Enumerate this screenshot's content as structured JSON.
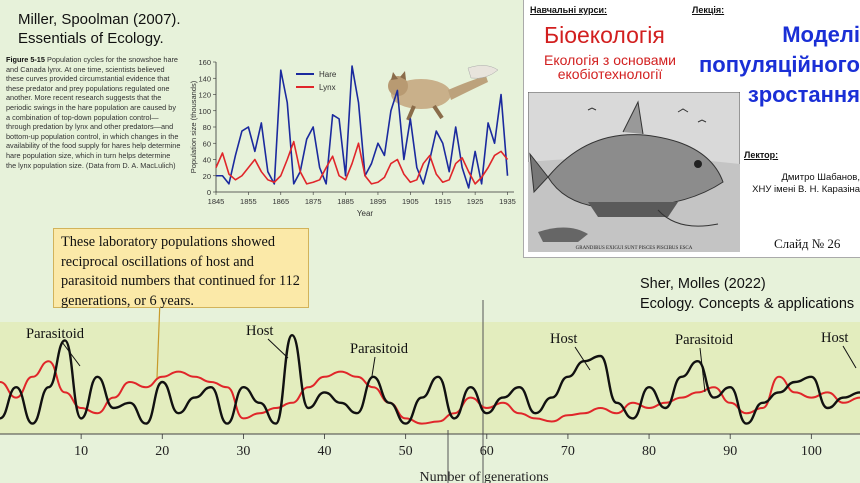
{
  "citation_top": {
    "line1": "Miller, Spoolman (2007).",
    "line2": "Essentials of Ecology."
  },
  "figure_caption": {
    "label": "Figure 5-15",
    "text": "Population cycles for the snowshoe hare and Canada lynx. At one time, scientists believed these curves provided circumstantial evidence that these predator and prey populations regulated one another. More recent research suggests that the periodic swings in the hare population are caused by a combination of top-down population control—through predation by lynx and other predators—and bottom-up population control, in which changes in the availability of the food supply for hares help determine hare population size, which in turn helps determine the lynx population size. (Data from D. A. MacLulich)"
  },
  "right_panel": {
    "courses_label": "Навчальні курси:",
    "lecture_label": "Лекція:",
    "course_title": "Біоекологія",
    "course_subtitle": "Екологія з основами екобіотехнології",
    "lecture_title_lines": [
      "Моделі",
      "популяційного",
      "зростання"
    ],
    "lector_label": "Лектор:",
    "lector_name": "Дмитро Шабанов,",
    "lector_affiliation": "ХНУ імені В. Н. Каразіна",
    "slide_number": "Слайд № 26",
    "engraving_caption": "GRANDIBUS EXIGUI SUNT PISCES PISCIBUS ESCA"
  },
  "callout": {
    "text": "These laboratory populations showed reciprocal oscillations of host and parasitoid numbers that continued for 112 generations, or 6 years."
  },
  "citation_bottom": {
    "line1": "Sher, Molles (2022)",
    "line2": "Ecology. Concepts & applications"
  },
  "colors": {
    "hare": "#1b2a9e",
    "lynx": "#e0262a",
    "host": "#111111",
    "parasitoid": "#e0262a",
    "course": "#d21f1f",
    "lecture": "#1a2fd6"
  },
  "chart_data": [
    {
      "type": "line",
      "x": [
        1845,
        1847,
        1849,
        1851,
        1853,
        1855,
        1857,
        1859,
        1861,
        1863,
        1865,
        1867,
        1869,
        1871,
        1873,
        1875,
        1877,
        1879,
        1881,
        1883,
        1885,
        1887,
        1889,
        1891,
        1893,
        1895,
        1897,
        1899,
        1901,
        1903,
        1905,
        1907,
        1909,
        1911,
        1913,
        1915,
        1917,
        1919,
        1921,
        1923,
        1925,
        1927,
        1929,
        1931,
        1933,
        1935
      ],
      "series": [
        {
          "name": "Hare",
          "values": [
            20,
            20,
            10,
            45,
            75,
            80,
            50,
            85,
            25,
            10,
            150,
            110,
            10,
            25,
            65,
            80,
            30,
            10,
            95,
            90,
            20,
            155,
            110,
            20,
            35,
            60,
            45,
            100,
            125,
            40,
            90,
            30,
            10,
            40,
            75,
            60,
            25,
            80,
            30,
            5,
            50,
            10,
            85,
            60,
            120,
            20
          ]
        },
        {
          "name": "Lynx",
          "values": [
            30,
            48,
            22,
            15,
            20,
            30,
            40,
            25,
            15,
            12,
            20,
            40,
            62,
            25,
            10,
            12,
            15,
            30,
            44,
            20,
            15,
            35,
            60,
            20,
            10,
            12,
            18,
            35,
            40,
            22,
            12,
            15,
            35,
            45,
            22,
            12,
            15,
            35,
            42,
            25,
            10,
            18,
            30,
            45,
            50,
            40
          ]
        }
      ],
      "xlabel": "Year",
      "ylabel": "Population size (thousands)",
      "xticks": [
        1845,
        1855,
        1865,
        1875,
        1885,
        1895,
        1905,
        1915,
        1925,
        1935
      ],
      "yticks": [
        0,
        20,
        40,
        60,
        80,
        100,
        120,
        140,
        160
      ],
      "xlim": [
        1845,
        1937
      ],
      "ylim": [
        0,
        160
      ],
      "legend": "top-right"
    },
    {
      "type": "line",
      "x": [
        0,
        2,
        4,
        6,
        8,
        10,
        12,
        14,
        16,
        18,
        20,
        22,
        24,
        26,
        28,
        30,
        32,
        34,
        36,
        38,
        40,
        42,
        44,
        46,
        48,
        50,
        52,
        54,
        56,
        58,
        60,
        62,
        64,
        66,
        68,
        70,
        72,
        74,
        76,
        78,
        80,
        82,
        84,
        86,
        88,
        90,
        92,
        94,
        96,
        98,
        100,
        102,
        104,
        106
      ],
      "series": [
        {
          "name": "Host",
          "values": [
            0.15,
            0.45,
            0.1,
            0.45,
            0.9,
            0.15,
            0.55,
            0.25,
            0.3,
            0.1,
            0.5,
            0.2,
            0.35,
            0.45,
            0.1,
            0.45,
            0.3,
            0.1,
            0.95,
            0.25,
            0.4,
            0.3,
            0.2,
            0.55,
            0.3,
            0.1,
            0.35,
            0.55,
            0.15,
            0.45,
            0.2,
            0.35,
            0.45,
            0.2,
            0.35,
            0.55,
            0.7,
            0.75,
            0.3,
            0.15,
            0.45,
            0.25,
            0.55,
            0.7,
            0.35,
            0.45,
            0.1,
            0.3,
            0.4,
            0.5,
            0.55,
            0.25,
            0.35,
            0.4
          ]
        },
        {
          "name": "Parasitoid",
          "values": [
            0.5,
            0.35,
            0.55,
            0.7,
            0.4,
            0.25,
            0.2,
            0.35,
            0.5,
            0.45,
            0.55,
            0.6,
            0.55,
            0.5,
            0.45,
            0.15,
            0.2,
            0.25,
            0.3,
            0.45,
            0.55,
            0.6,
            0.55,
            0.45,
            0.3,
            0.15,
            0.1,
            0.12,
            0.2,
            0.35,
            0.25,
            0.3,
            0.2,
            0.15,
            0.12,
            0.18,
            0.2,
            0.25,
            0.2,
            0.3,
            0.25,
            0.3,
            0.35,
            0.4,
            0.45,
            0.3,
            0.2,
            0.25,
            0.55,
            0.4,
            0.35,
            0.4,
            0.3,
            0.35
          ]
        }
      ],
      "annotations": [
        "Parasitoid",
        "Host",
        "Parasitoid",
        "Host",
        "Parasitoid",
        "Host"
      ],
      "xlabel": "Number of generations",
      "xticks": [
        10,
        20,
        30,
        40,
        50,
        60,
        70,
        80,
        90,
        100
      ],
      "xlim": [
        0,
        106
      ]
    }
  ]
}
